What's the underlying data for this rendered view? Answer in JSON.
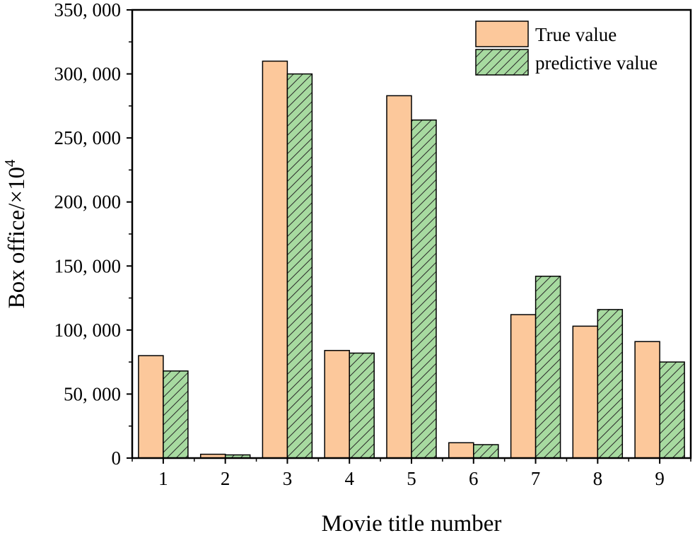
{
  "chart_data": {
    "type": "bar",
    "xlabel": "Movie title number",
    "ylabel": "Box office/×10",
    "ylabel_superscript": "4",
    "categories": [
      "1",
      "2",
      "3",
      "4",
      "5",
      "6",
      "7",
      "8",
      "9"
    ],
    "ylim": [
      0,
      350000
    ],
    "yticks": [
      0,
      50000,
      100000,
      150000,
      200000,
      250000,
      300000,
      350000
    ],
    "ytick_labels": [
      "0",
      "50, 000",
      "100, 000",
      "150, 000",
      "200, 000",
      "250, 000",
      "300, 000",
      "350, 000"
    ],
    "series": [
      {
        "name": "True value",
        "color": "#FCC89B",
        "pattern": "solid",
        "values": [
          80000,
          3000,
          310000,
          84000,
          283000,
          12000,
          112000,
          103000,
          91000
        ]
      },
      {
        "name": "predictive value",
        "color": "#A7DAA0",
        "pattern": "diagonal-hatch",
        "values": [
          68000,
          2500,
          300000,
          82000,
          264000,
          10500,
          142000,
          116000,
          75000
        ]
      }
    ],
    "legend_position": "top-right",
    "grid": false
  }
}
